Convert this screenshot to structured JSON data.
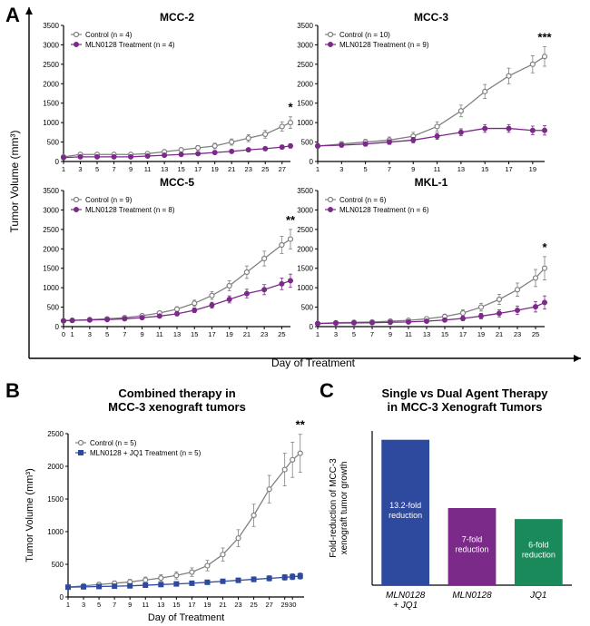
{
  "panelA": {
    "label": "A",
    "y_axis_label": "Tumor Volume (mm³)",
    "x_axis_label": "Day of Treatment",
    "y_max": 3500,
    "y_step": 500,
    "charts": [
      {
        "title": "MCC-2",
        "legend": [
          {
            "label": "Control (n = 4)",
            "marker": "open-circle",
            "color": "#808080"
          },
          {
            "label": "MLN0128 Treatment (n = 4)",
            "marker": "filled-circle",
            "color": "#7c2a8a"
          }
        ],
        "x_ticks": [
          1,
          3,
          5,
          7,
          9,
          11,
          13,
          15,
          17,
          19,
          21,
          23,
          25,
          27
        ],
        "sig": "*",
        "series": [
          {
            "color": "#808080",
            "marker": "open-circle",
            "x": [
              1,
              3,
              5,
              7,
              9,
              11,
              13,
              15,
              17,
              19,
              21,
              23,
              25,
              27,
              28
            ],
            "y": [
              120,
              180,
              180,
              180,
              180,
              200,
              250,
              300,
              350,
              400,
              500,
              600,
              700,
              900,
              1000
            ],
            "err": [
              30,
              30,
              30,
              30,
              30,
              40,
              40,
              50,
              60,
              70,
              80,
              90,
              100,
              120,
              150
            ]
          },
          {
            "color": "#7c2a8a",
            "marker": "filled-circle",
            "x": [
              1,
              3,
              5,
              7,
              9,
              11,
              13,
              15,
              17,
              19,
              21,
              23,
              25,
              27,
              28
            ],
            "y": [
              100,
              120,
              120,
              120,
              120,
              140,
              160,
              180,
              200,
              230,
              260,
              300,
              330,
              370,
              400
            ],
            "err": [
              20,
              20,
              20,
              20,
              20,
              25,
              25,
              30,
              30,
              35,
              35,
              40,
              45,
              50,
              55
            ]
          }
        ]
      },
      {
        "title": "MCC-3",
        "legend": [
          {
            "label": "Control (n = 10)",
            "marker": "open-circle",
            "color": "#808080"
          },
          {
            "label": "MLN0128 Treatment (n = 9)",
            "marker": "filled-circle",
            "color": "#7c2a8a"
          }
        ],
        "x_ticks": [
          1,
          3,
          5,
          7,
          9,
          11,
          13,
          15,
          17,
          19
        ],
        "sig": "***",
        "series": [
          {
            "color": "#808080",
            "marker": "open-circle",
            "x": [
              1,
              3,
              5,
              7,
              9,
              11,
              13,
              15,
              17,
              19,
              20
            ],
            "y": [
              400,
              450,
              500,
              550,
              650,
              900,
              1300,
              1800,
              2200,
              2500,
              2700
            ],
            "err": [
              60,
              60,
              70,
              80,
              100,
              120,
              150,
              180,
              200,
              220,
              250
            ]
          },
          {
            "color": "#7c2a8a",
            "marker": "filled-circle",
            "x": [
              1,
              3,
              5,
              7,
              9,
              11,
              13,
              15,
              17,
              19,
              20
            ],
            "y": [
              400,
              420,
              450,
              500,
              550,
              650,
              750,
              850,
              850,
              800,
              800
            ],
            "err": [
              50,
              50,
              55,
              60,
              70,
              80,
              90,
              100,
              100,
              110,
              120
            ]
          }
        ]
      },
      {
        "title": "MCC-5",
        "legend": [
          {
            "label": "Control (n = 9)",
            "marker": "open-circle",
            "color": "#808080"
          },
          {
            "label": "MLN0128 Treatment (n = 8)",
            "marker": "filled-circle",
            "color": "#7c2a8a"
          }
        ],
        "x_ticks": [
          0,
          1,
          3,
          5,
          7,
          9,
          11,
          13,
          15,
          17,
          19,
          21,
          23,
          25
        ],
        "sig": "**",
        "series": [
          {
            "color": "#808080",
            "marker": "open-circle",
            "x": [
              0,
              1,
              3,
              5,
              7,
              9,
              11,
              13,
              15,
              17,
              19,
              21,
              23,
              25,
              26
            ],
            "y": [
              150,
              160,
              180,
              200,
              230,
              280,
              350,
              450,
              600,
              800,
              1050,
              1400,
              1750,
              2100,
              2250
            ],
            "err": [
              30,
              30,
              30,
              35,
              40,
              45,
              50,
              60,
              80,
              100,
              130,
              160,
              190,
              220,
              250
            ]
          },
          {
            "color": "#7c2a8a",
            "marker": "filled-circle",
            "x": [
              0,
              1,
              3,
              5,
              7,
              9,
              11,
              13,
              15,
              17,
              19,
              21,
              23,
              25,
              26
            ],
            "y": [
              150,
              160,
              170,
              180,
              200,
              230,
              270,
              330,
              420,
              550,
              700,
              850,
              950,
              1100,
              1180
            ],
            "err": [
              25,
              25,
              25,
              30,
              30,
              35,
              40,
              50,
              60,
              75,
              90,
              110,
              130,
              150,
              170
            ]
          }
        ]
      },
      {
        "title": "MKL-1",
        "legend": [
          {
            "label": "Control (n = 6)",
            "marker": "open-circle",
            "color": "#808080"
          },
          {
            "label": "MLN0128 Treatment (n = 6)",
            "marker": "filled-circle",
            "color": "#7c2a8a"
          }
        ],
        "x_ticks": [
          1,
          3,
          5,
          7,
          9,
          11,
          13,
          15,
          17,
          19,
          21,
          23,
          25
        ],
        "sig": "*",
        "series": [
          {
            "color": "#808080",
            "marker": "open-circle",
            "x": [
              1,
              3,
              5,
              7,
              9,
              11,
              13,
              15,
              17,
              19,
              21,
              23,
              25,
              26
            ],
            "y": [
              80,
              100,
              110,
              120,
              140,
              160,
              200,
              260,
              350,
              500,
              700,
              950,
              1250,
              1500
            ],
            "err": [
              30,
              30,
              30,
              35,
              40,
              45,
              50,
              60,
              80,
              100,
              130,
              170,
              220,
              300
            ]
          },
          {
            "color": "#7c2a8a",
            "marker": "filled-circle",
            "x": [
              1,
              3,
              5,
              7,
              9,
              11,
              13,
              15,
              17,
              19,
              21,
              23,
              25,
              26
            ],
            "y": [
              80,
              90,
              95,
              100,
              110,
              120,
              140,
              170,
              210,
              270,
              340,
              420,
              510,
              620
            ],
            "err": [
              25,
              25,
              25,
              28,
              30,
              33,
              38,
              45,
              55,
              70,
              90,
              110,
              135,
              170
            ]
          }
        ]
      }
    ]
  },
  "panelB": {
    "label": "B",
    "title": "Combined therapy in\nMCC-3 xenograft tumors",
    "y_axis_label": "Tumor Volume (mm³)",
    "x_axis_label": "Day of Treatment",
    "y_max": 2500,
    "y_step": 500,
    "x_ticks": [
      1,
      3,
      5,
      7,
      9,
      11,
      13,
      15,
      17,
      19,
      21,
      23,
      25,
      27,
      29,
      30
    ],
    "sig": "**",
    "legend": [
      {
        "label": "Control (n = 5)",
        "marker": "open-circle",
        "color": "#808080"
      },
      {
        "label": "MLN0128 + JQ1 Treatment (n = 5)",
        "marker": "filled-square",
        "color": "#2e4a9e"
      }
    ],
    "series": [
      {
        "color": "#808080",
        "marker": "open-circle",
        "x": [
          1,
          3,
          5,
          7,
          9,
          11,
          13,
          15,
          17,
          19,
          21,
          23,
          25,
          27,
          29,
          30,
          31
        ],
        "y": [
          150,
          170,
          190,
          210,
          230,
          260,
          290,
          330,
          380,
          480,
          650,
          900,
          1250,
          1650,
          1950,
          2100,
          2200
        ],
        "err": [
          30,
          30,
          35,
          35,
          40,
          45,
          50,
          55,
          65,
          80,
          100,
          130,
          170,
          210,
          250,
          270,
          290
        ]
      },
      {
        "color": "#2e4a9e",
        "marker": "filled-square",
        "x": [
          1,
          3,
          5,
          7,
          9,
          11,
          13,
          15,
          17,
          19,
          21,
          23,
          25,
          27,
          29,
          30,
          31
        ],
        "y": [
          150,
          155,
          160,
          165,
          170,
          180,
          190,
          200,
          210,
          225,
          240,
          255,
          270,
          285,
          300,
          310,
          320
        ],
        "err": [
          20,
          20,
          20,
          22,
          22,
          25,
          25,
          28,
          28,
          30,
          32,
          35,
          38,
          40,
          42,
          44,
          46
        ]
      }
    ]
  },
  "panelC": {
    "label": "C",
    "title": "Single vs Dual Agent Therapy\nin MCC-3 Xenograft Tumors",
    "y_axis_label": "Fold-reduction of MCC-3\nxenograft tumor growth",
    "bars": [
      {
        "label": "MLN0128\n+ JQ1",
        "value": 13.2,
        "color": "#2e4a9e",
        "text": "13.2-fold\nreduction",
        "italic": true
      },
      {
        "label": "MLN0128",
        "value": 7,
        "color": "#7c2a8a",
        "text": "7-fold\nreduction",
        "italic": true
      },
      {
        "label": "JQ1",
        "value": 6,
        "color": "#1a8a5a",
        "text": "6-fold\nreduction",
        "italic": true
      }
    ],
    "y_max": 14
  },
  "colors": {
    "control": "#808080",
    "mln": "#7c2a8a",
    "combo": "#2e4a9e",
    "jq1": "#1a8a5a",
    "axis": "#000000"
  }
}
